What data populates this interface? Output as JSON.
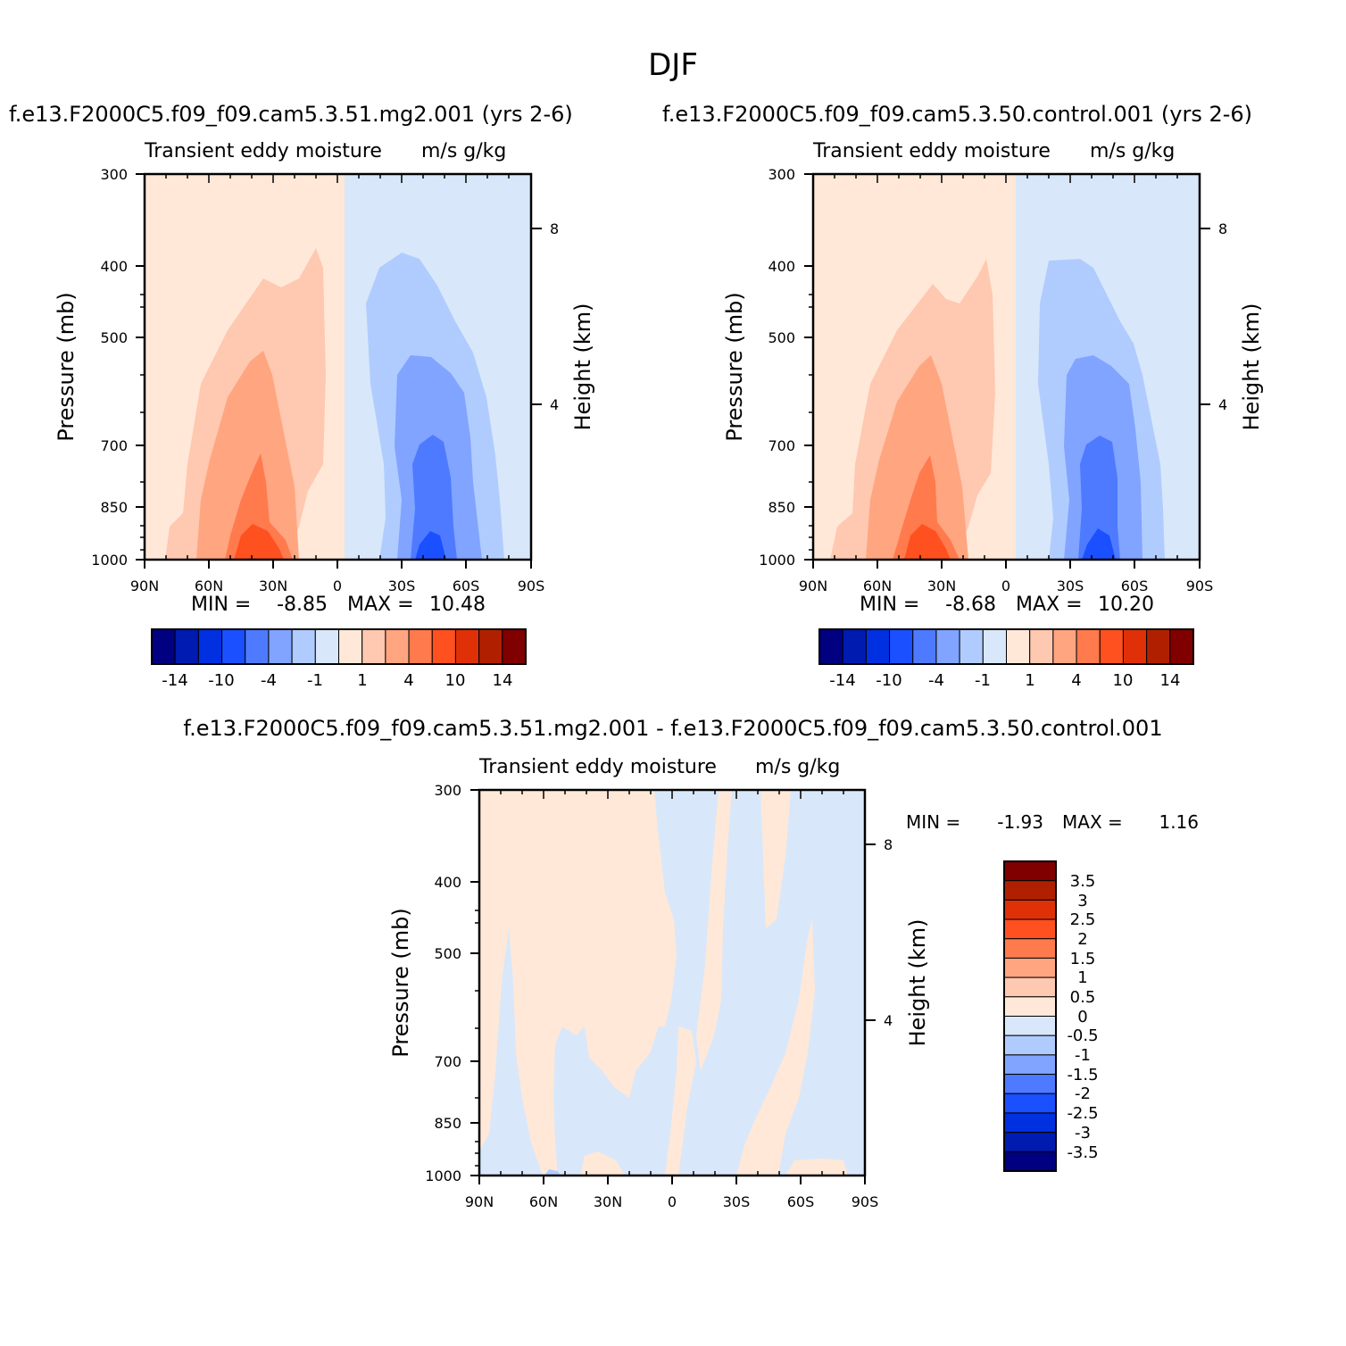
{
  "figure": {
    "title": "DJF"
  },
  "palettes": {
    "main": [
      "#000080",
      "#001bb0",
      "#0030e0",
      "#1a50ff",
      "#4d7aff",
      "#80a4ff",
      "#b0ccff",
      "#d8e8fa",
      "#ffe8d8",
      "#ffc8b0",
      "#ffa580",
      "#ff7a4d",
      "#ff5020",
      "#e03008",
      "#b02000",
      "#800000"
    ],
    "diff": [
      "#000080",
      "#001bb0",
      "#0030e0",
      "#1a50ff",
      "#4d7aff",
      "#80a4ff",
      "#b0ccff",
      "#d8e8fa",
      "#ffe8d8",
      "#ffc8b0",
      "#ffa580",
      "#ff7a4d",
      "#ff5020",
      "#e03008",
      "#b02000",
      "#800000"
    ]
  },
  "chart_data": [
    {
      "type": "heatmap",
      "run_title": "f.e13.F2000C5.f09_f09.cam5.3.51.mg2.001  (yrs  2-6)",
      "title": "Transient  eddy  moisture",
      "units": "m/s  g/kg",
      "ylabel": "Pressure  (mb)",
      "y2label": "Height  (km)",
      "x_ticks": [
        "90N",
        "60N",
        "30N",
        "0",
        "30S",
        "60S",
        "90S"
      ],
      "y_ticks": [
        "300",
        "400",
        "500",
        "700",
        "850",
        "1000"
      ],
      "y2_ticks": [
        "8",
        "4"
      ],
      "min_label": "MIN  =",
      "min": "-8.85",
      "max_label": "MAX  =",
      "max": "10.48",
      "colorbar_labels": [
        "-14",
        "-10",
        "-4",
        "-1",
        "1",
        "4",
        "10",
        "14"
      ],
      "palette": "main"
    },
    {
      "type": "heatmap",
      "run_title": "f.e13.F2000C5.f09_f09.cam5.3.50.control.001  (yrs  2-6)",
      "title": "Transient  eddy  moisture",
      "units": "m/s  g/kg",
      "ylabel": "Pressure  (mb)",
      "y2label": "Height  (km)",
      "x_ticks": [
        "90N",
        "60N",
        "30N",
        "0",
        "30S",
        "60S",
        "90S"
      ],
      "y_ticks": [
        "300",
        "400",
        "500",
        "700",
        "850",
        "1000"
      ],
      "y2_ticks": [
        "8",
        "4"
      ],
      "min_label": "MIN  =",
      "min": "-8.68",
      "max_label": "MAX  =",
      "max": "10.20",
      "colorbar_labels": [
        "-14",
        "-10",
        "-4",
        "-1",
        "1",
        "4",
        "10",
        "14"
      ],
      "palette": "main"
    },
    {
      "type": "heatmap",
      "run_title": "f.e13.F2000C5.f09_f09.cam5.3.51.mg2.001  -  f.e13.F2000C5.f09_f09.cam5.3.50.control.001",
      "title": "Transient  eddy  moisture",
      "units": "m/s  g/kg",
      "ylabel": "Pressure  (mb)",
      "y2label": "Height  (km)",
      "x_ticks": [
        "90N",
        "60N",
        "30N",
        "0",
        "30S",
        "60S",
        "90S"
      ],
      "y_ticks": [
        "300",
        "400",
        "500",
        "700",
        "850",
        "1000"
      ],
      "y2_ticks": [
        "8",
        "4"
      ],
      "min_label": "MIN  =",
      "min": "-1.93",
      "max_label": "MAX  =",
      "max": "1.16",
      "colorbar_labels": [
        "3.5",
        "3",
        "2.5",
        "2",
        "1.5",
        "1",
        "0.5",
        "0",
        "-0.5",
        "-1",
        "-1.5",
        "-2",
        "-2.5",
        "-3",
        "-3.5"
      ],
      "palette": "diff"
    }
  ]
}
